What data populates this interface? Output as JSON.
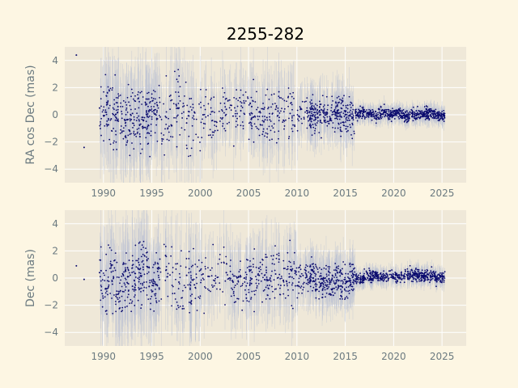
{
  "chart_data": {
    "type": "scatter",
    "title": "2255-282",
    "colors": {
      "background": "#fdf6e3",
      "panel": "#efe8d8",
      "grid": "#ffffff",
      "points": "#0b0b6e",
      "error_bars": "#b8c0d4",
      "tick_text": "#6b7a80"
    },
    "panels": [
      {
        "ylabel": "RA cos Dec (mas)",
        "xlim": [
          1986,
          2027.5
        ],
        "ylim": [
          -5,
          5
        ],
        "xticks": [
          1990,
          1995,
          2000,
          2005,
          2010,
          2015,
          2020,
          2025
        ],
        "yticks": [
          -4,
          -2,
          0,
          2,
          4
        ],
        "grid": true,
        "series": [
          {
            "kind": "points",
            "x": [
              1987.2,
              1988.0,
              1989.6,
              1990.2,
              1990.8,
              1991.5,
              1992.3,
              1993.0,
              1994.1,
              1995.2,
              1996.5,
              1997.8,
              1998.6,
              1999.4,
              2000.3,
              2001.5,
              2002.7,
              2003.4,
              2004.2,
              2005.3,
              2006.1,
              2006.9,
              2007.8,
              2008.6,
              2009.3,
              2010.2,
              2011.0,
              2011.9,
              2012.7,
              2013.5,
              2014.3,
              2015.0,
              2015.8,
              2016.6,
              2017.4,
              2018.2,
              2019.0,
              2019.8,
              2020.6,
              2021.4,
              2022.2,
              2023.0,
              2023.8,
              2024.6,
              2025.2
            ],
            "y": [
              4.4,
              -2.4,
              0.5,
              0.2,
              -0.3,
              0.6,
              -0.8,
              0.1,
              -0.4,
              0.3,
              -0.2,
              0.5,
              -0.6,
              0.2,
              0.0,
              -0.5,
              0.4,
              -0.1,
              0.3,
              -0.3,
              0.2,
              -0.2,
              0.4,
              -0.4,
              0.1,
              -0.1,
              0.3,
              -0.2,
              0.2,
              -0.3,
              0.1,
              0.0,
              -0.2,
              0.2,
              0.1,
              -0.1,
              0.2,
              0.0,
              0.1,
              -0.1,
              0.1,
              0.0,
              0.2,
              -0.1,
              0.0
            ]
          }
        ]
      },
      {
        "ylabel": "Dec (mas)",
        "xlim": [
          1986,
          2027.5
        ],
        "ylim": [
          -5,
          5
        ],
        "xticks": [
          1990,
          1995,
          2000,
          2005,
          2010,
          2015,
          2020,
          2025
        ],
        "yticks": [
          -4,
          -2,
          0,
          2,
          4
        ],
        "grid": true,
        "series": [
          {
            "kind": "points",
            "x": [
              1987.2,
              1988.0,
              1989.6,
              1990.2,
              1990.8,
              1991.5,
              1992.3,
              1993.0,
              1994.1,
              1995.2,
              1996.5,
              1997.8,
              1998.6,
              1999.4,
              2000.3,
              2001.5,
              2002.7,
              2003.4,
              2004.2,
              2005.3,
              2006.1,
              2006.9,
              2007.8,
              2008.6,
              2009.3,
              2010.2,
              2011.0,
              2011.9,
              2012.7,
              2013.5,
              2014.3,
              2015.0,
              2015.8,
              2016.6,
              2017.4,
              2018.2,
              2019.0,
              2019.8,
              2020.6,
              2021.4,
              2022.2,
              2023.0,
              2023.8,
              2024.6,
              2025.2
            ],
            "y": [
              0.9,
              -0.1,
              0.4,
              -0.8,
              0.9,
              -1.2,
              0.5,
              -0.6,
              0.8,
              -0.4,
              0.6,
              -0.3,
              0.2,
              -0.5,
              0.3,
              -0.2,
              0.4,
              -0.3,
              0.1,
              -0.4,
              0.2,
              -0.1,
              0.3,
              -0.2,
              0.1,
              -0.3,
              0.2,
              -0.2,
              -0.1,
              -0.3,
              -0.2,
              -0.4,
              0.1,
              -0.1,
              0.2,
              0.1,
              0.0,
              0.2,
              0.1,
              0.2,
              0.3,
              0.1,
              0.2,
              0.0,
              0.1
            ]
          }
        ]
      }
    ]
  }
}
